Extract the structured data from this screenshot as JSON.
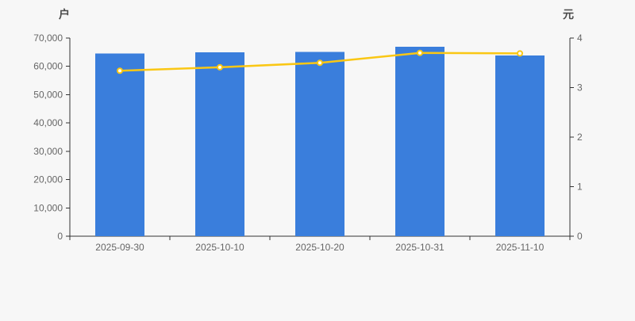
{
  "background_color": "#f7f7f7",
  "chart_data": {
    "type": "bar+line",
    "title": "",
    "categories": [
      "2025-09-30",
      "2025-10-10",
      "2025-10-20",
      "2025-10-31",
      "2025-11-10"
    ],
    "series": [
      {
        "type": "bar",
        "y_axis": "left",
        "unit": "户",
        "color": "#3a7edc",
        "values": [
          64600,
          64900,
          65100,
          66900,
          63800
        ]
      },
      {
        "type": "line",
        "y_axis": "right",
        "unit": "元",
        "color": "#fac714",
        "marker": "white-filled-circle",
        "values": [
          3.34,
          3.41,
          3.5,
          3.7,
          3.69
        ]
      }
    ],
    "left_axis": {
      "label": "户",
      "min": 0,
      "max": 70000,
      "tick_step": 10000,
      "tick_labels": [
        "0",
        "10,000",
        "20,000",
        "30,000",
        "40,000",
        "50,000",
        "60,000",
        "70,000"
      ]
    },
    "right_axis": {
      "label": "元",
      "min": 0,
      "max": 4,
      "tick_step": 1,
      "tick_labels": [
        "0",
        "1",
        "2",
        "3",
        "4"
      ]
    },
    "grid": false,
    "legend": null,
    "axis_line_color": "#333333",
    "tick_label_color": "#666666"
  }
}
